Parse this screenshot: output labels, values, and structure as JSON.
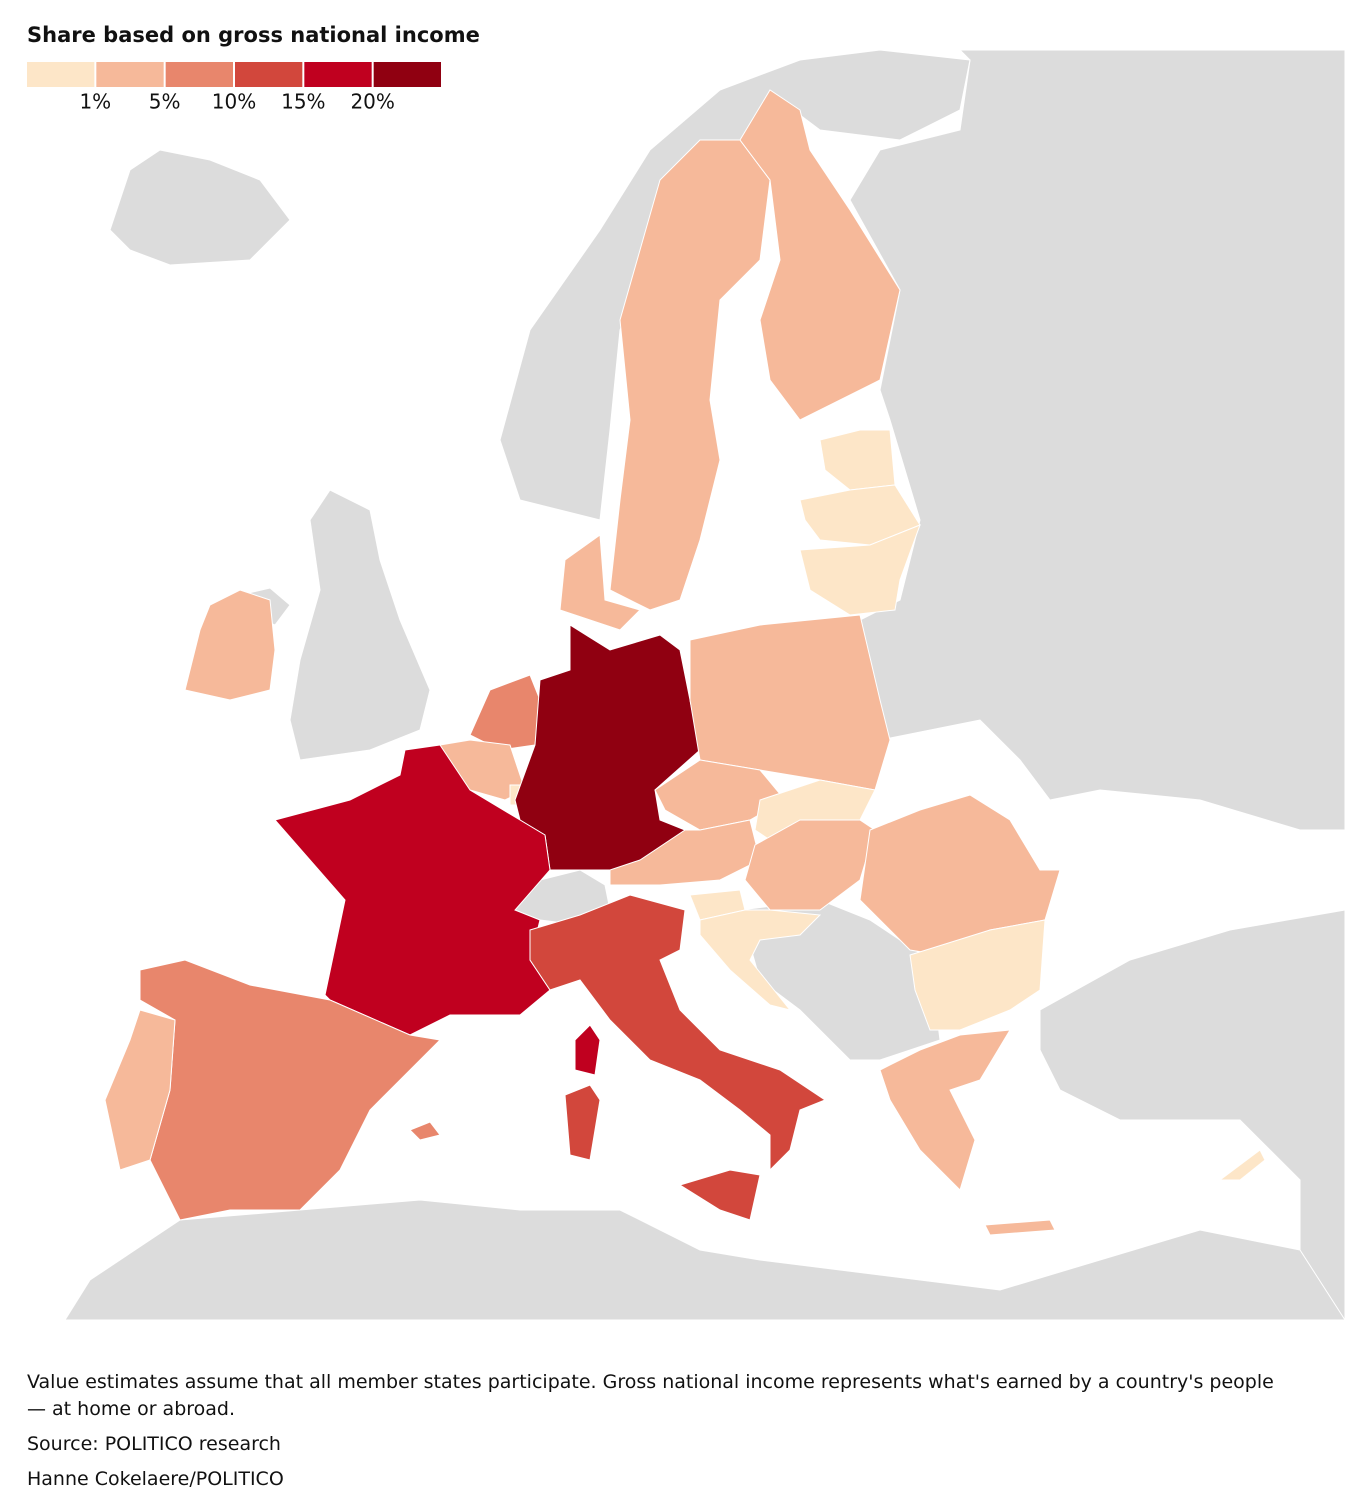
{
  "title": "Share based on gross national income",
  "legend": {
    "colors": [
      "#fde6c8",
      "#f6b99a",
      "#e8866c",
      "#d2473c",
      "#c0001f",
      "#900011"
    ],
    "ticks": [
      {
        "value": 1,
        "label": "1%"
      },
      {
        "value": 5,
        "label": "5%"
      },
      {
        "value": 10,
        "label": "10%"
      },
      {
        "value": 15,
        "label": "15%"
      },
      {
        "value": 20,
        "label": "20%"
      }
    ]
  },
  "notes": [
    "Value estimates assume that all member states participate. Gross national income represents what's earned by a country's people",
    "— at home or abroad.",
    "Source: POLITICO research",
    "Hanne Cokelaere/POLITICO"
  ]
}
